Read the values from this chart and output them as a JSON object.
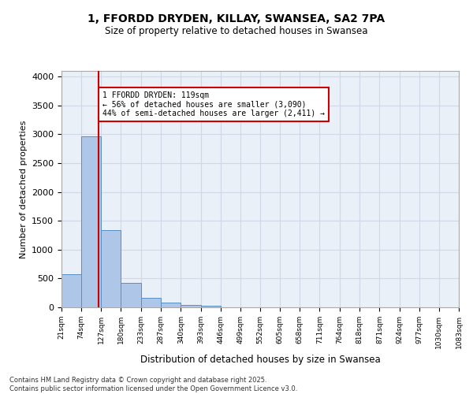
{
  "title_line1": "1, FFORDD DRYDEN, KILLAY, SWANSEA, SA2 7PA",
  "title_line2": "Size of property relative to detached houses in Swansea",
  "xlabel": "Distribution of detached houses by size in Swansea",
  "ylabel": "Number of detached properties",
  "footnote": "Contains HM Land Registry data © Crown copyright and database right 2025.\nContains public sector information licensed under the Open Government Licence v3.0.",
  "bar_edges": [
    21,
    74,
    127,
    180,
    233,
    287,
    340,
    393,
    446,
    499,
    552,
    605,
    658,
    711,
    764,
    818,
    871,
    924,
    977,
    1030,
    1083
  ],
  "bar_heights": [
    580,
    2970,
    1340,
    420,
    170,
    80,
    40,
    25,
    5,
    0,
    0,
    0,
    0,
    0,
    0,
    0,
    0,
    0,
    0,
    0
  ],
  "bar_color": "#aec6e8",
  "bar_edge_color": "#5a8fc0",
  "grid_color": "#d0d8e8",
  "background_color": "#eaf0f8",
  "red_line_x": 119,
  "annotation_text": "1 FFORDD DRYDEN: 119sqm\n← 56% of detached houses are smaller (3,090)\n44% of semi-detached houses are larger (2,411) →",
  "annotation_box_color": "#cc0000",
  "ylim": [
    0,
    4100
  ],
  "yticks": [
    0,
    500,
    1000,
    1500,
    2000,
    2500,
    3000,
    3500,
    4000
  ],
  "tick_labels": [
    "21sqm",
    "74sqm",
    "127sqm",
    "180sqm",
    "233sqm",
    "287sqm",
    "340sqm",
    "393sqm",
    "446sqm",
    "499sqm",
    "552sqm",
    "605sqm",
    "658sqm",
    "711sqm",
    "764sqm",
    "818sqm",
    "871sqm",
    "924sqm",
    "977sqm",
    "1030sqm",
    "1083sqm"
  ]
}
